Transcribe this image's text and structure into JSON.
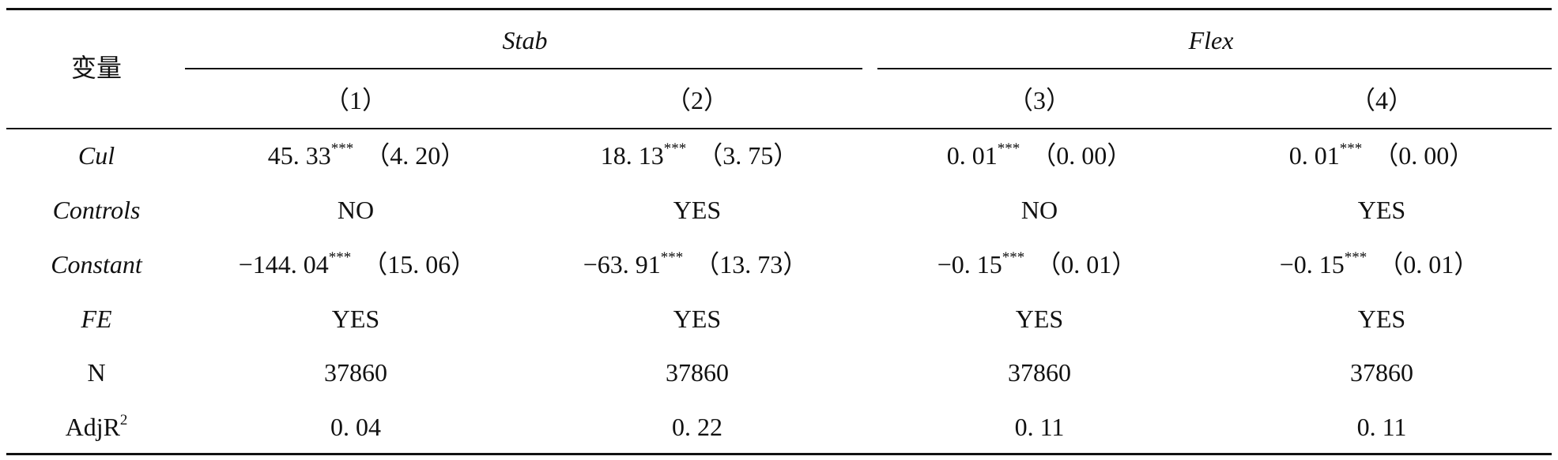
{
  "table": {
    "variable_header": "变量",
    "groups": [
      "Stab",
      "Flex"
    ],
    "column_numbers": [
      "（1）",
      "（2）",
      "（3）",
      "（4）"
    ],
    "rows": [
      {
        "label": "Cul",
        "cells": [
          {
            "coef": "45. 33",
            "stars": "***",
            "se": "（4. 20）"
          },
          {
            "coef": "18. 13",
            "stars": "***",
            "se": "（3. 75）"
          },
          {
            "coef": "0. 01",
            "stars": "***",
            "se": "（0. 00）"
          },
          {
            "coef": "0. 01",
            "stars": "***",
            "se": "（0. 00）"
          }
        ]
      },
      {
        "label": "Controls",
        "cells": [
          {
            "coef": "NO"
          },
          {
            "coef": "YES"
          },
          {
            "coef": "NO"
          },
          {
            "coef": "YES"
          }
        ]
      },
      {
        "label": "Constant",
        "cells": [
          {
            "coef": "−144. 04",
            "stars": "***",
            "se": "（15. 06）"
          },
          {
            "coef": "−63. 91",
            "stars": "***",
            "se": "（13. 73）"
          },
          {
            "coef": "−0. 15",
            "stars": "***",
            "se": "（0. 01）"
          },
          {
            "coef": "−0. 15",
            "stars": "***",
            "se": "（0. 01）"
          }
        ]
      },
      {
        "label": "FE",
        "cells": [
          {
            "coef": "YES"
          },
          {
            "coef": "YES"
          },
          {
            "coef": "YES"
          },
          {
            "coef": "YES"
          }
        ]
      },
      {
        "label": "N",
        "cells": [
          {
            "coef": "37860"
          },
          {
            "coef": "37860"
          },
          {
            "coef": "37860"
          },
          {
            "coef": "37860"
          }
        ]
      },
      {
        "label": "AdjR",
        "label_sup": "2",
        "cells": [
          {
            "coef": "0. 04"
          },
          {
            "coef": "0. 22"
          },
          {
            "coef": "0. 11"
          },
          {
            "coef": "0. 11"
          }
        ]
      }
    ]
  }
}
